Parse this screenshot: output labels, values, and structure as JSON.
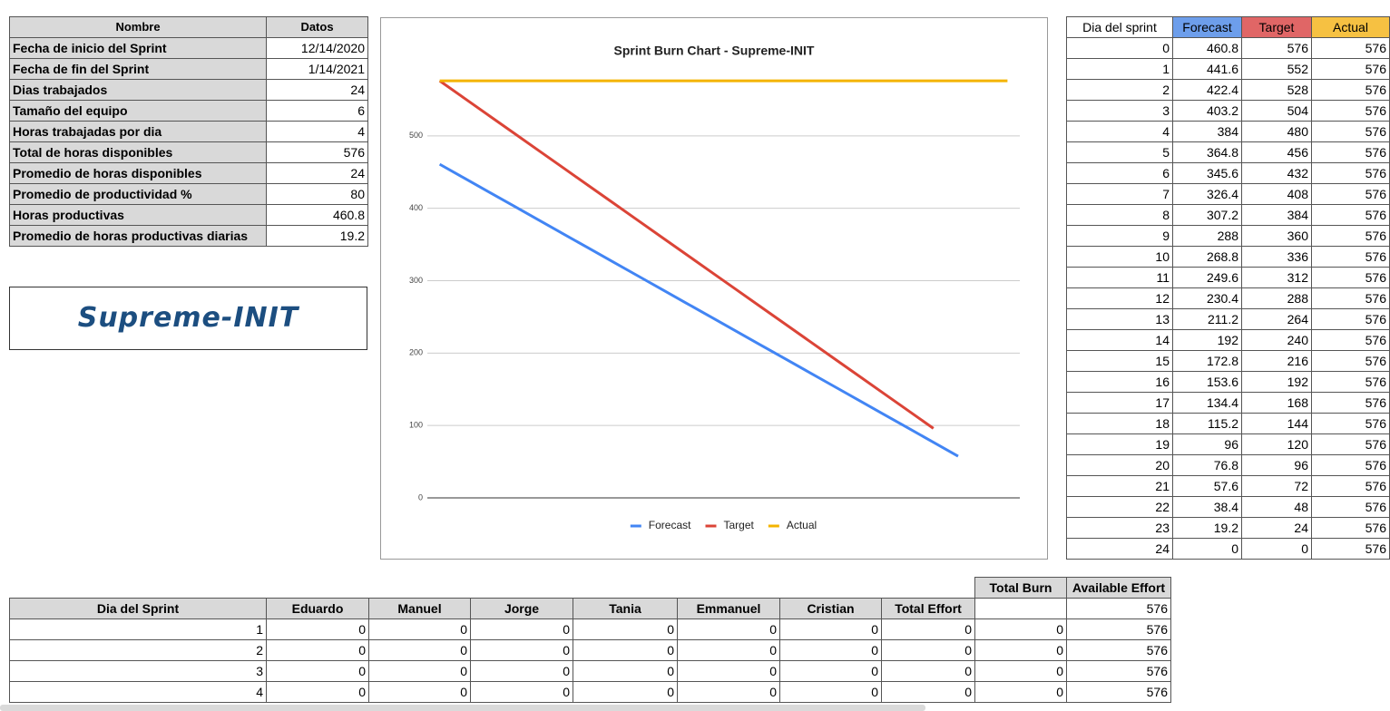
{
  "info_table": {
    "headers": [
      "Nombre",
      "Datos"
    ],
    "rows": [
      [
        "Fecha de inicio del Sprint",
        "12/14/2020"
      ],
      [
        "Fecha de fin del Sprint",
        "1/14/2021"
      ],
      [
        "Dias trabajados",
        24
      ],
      [
        "Tamaño del equipo",
        6
      ],
      [
        "Horas trabajadas por dia",
        4
      ],
      [
        "Total de horas disponibles",
        576
      ],
      [
        "Promedio de horas disponibles",
        24
      ],
      [
        "Promedio de productividad %",
        80
      ],
      [
        "Horas productivas",
        460.8
      ],
      [
        "Promedio de horas productivas diarias",
        19.2
      ]
    ]
  },
  "logo": "Supreme-INIT",
  "chart_data": {
    "type": "line",
    "title": "Sprint Burn Chart - Supreme-INIT",
    "categories": [
      null,
      null,
      null,
      null,
      null,
      null,
      null,
      null,
      null,
      null,
      null,
      null,
      null,
      null,
      null,
      null,
      null,
      null,
      null,
      null,
      null,
      null,
      null,
      null
    ],
    "series": [
      {
        "name": "Forecast",
        "color": "#4285f4",
        "values": [
          460.8,
          441.6,
          422.4,
          403.2,
          384,
          364.8,
          345.6,
          326.4,
          307.2,
          288,
          268.8,
          249.6,
          230.4,
          211.2,
          192,
          172.8,
          153.6,
          134.4,
          115.2,
          96,
          76.8,
          57.6,
          null,
          null
        ]
      },
      {
        "name": "Target",
        "color": "#db4437",
        "values": [
          576,
          552,
          528,
          504,
          480,
          456,
          432,
          408,
          384,
          360,
          336,
          312,
          288,
          264,
          240,
          216,
          192,
          168,
          144,
          120,
          96,
          null,
          null,
          null
        ]
      },
      {
        "name": "Actual",
        "color": "#f4b400",
        "values": [
          576,
          576,
          576,
          576,
          576,
          576,
          576,
          576,
          576,
          576,
          576,
          576,
          576,
          576,
          576,
          576,
          576,
          576,
          576,
          576,
          576,
          576,
          576,
          576
        ]
      }
    ],
    "ylim": [
      0,
      600
    ],
    "yticks": [
      0,
      100,
      200,
      300,
      400,
      500
    ],
    "grid": true,
    "legend": "bottom"
  },
  "sprint_table": {
    "headers": [
      "Dia del sprint",
      "Forecast",
      "Target",
      "Actual"
    ],
    "header_colors": [
      "#ffffff",
      "#6d9eeb",
      "#e06666",
      "#f6c142"
    ],
    "rows": [
      [
        0,
        460.8,
        576,
        576
      ],
      [
        1,
        441.6,
        552,
        576
      ],
      [
        2,
        422.4,
        528,
        576
      ],
      [
        3,
        403.2,
        504,
        576
      ],
      [
        4,
        384,
        480,
        576
      ],
      [
        5,
        364.8,
        456,
        576
      ],
      [
        6,
        345.6,
        432,
        576
      ],
      [
        7,
        326.4,
        408,
        576
      ],
      [
        8,
        307.2,
        384,
        576
      ],
      [
        9,
        288,
        360,
        576
      ],
      [
        10,
        268.8,
        336,
        576
      ],
      [
        11,
        249.6,
        312,
        576
      ],
      [
        12,
        230.4,
        288,
        576
      ],
      [
        13,
        211.2,
        264,
        576
      ],
      [
        14,
        192,
        240,
        576
      ],
      [
        15,
        172.8,
        216,
        576
      ],
      [
        16,
        153.6,
        192,
        576
      ],
      [
        17,
        134.4,
        168,
        576
      ],
      [
        18,
        115.2,
        144,
        576
      ],
      [
        19,
        96,
        120,
        576
      ],
      [
        20,
        76.8,
        96,
        576
      ],
      [
        21,
        57.6,
        72,
        576
      ],
      [
        22,
        38.4,
        48,
        576
      ],
      [
        23,
        19.2,
        24,
        576
      ],
      [
        24,
        0,
        0,
        576
      ]
    ]
  },
  "effort_table": {
    "top_headers": [
      "Total Burn",
      "Available Effort"
    ],
    "headers": [
      "Dia del Sprint",
      "Eduardo",
      "Manuel",
      "Jorge",
      "Tania",
      "Emmanuel",
      "Cristian",
      "Total Effort"
    ],
    "header_available": 576,
    "rows": [
      [
        1,
        0,
        0,
        0,
        0,
        0,
        0,
        0,
        0,
        576
      ],
      [
        2,
        0,
        0,
        0,
        0,
        0,
        0,
        0,
        0,
        576
      ],
      [
        3,
        0,
        0,
        0,
        0,
        0,
        0,
        0,
        0,
        576
      ],
      [
        4,
        0,
        0,
        0,
        0,
        0,
        0,
        0,
        0,
        576
      ]
    ]
  }
}
